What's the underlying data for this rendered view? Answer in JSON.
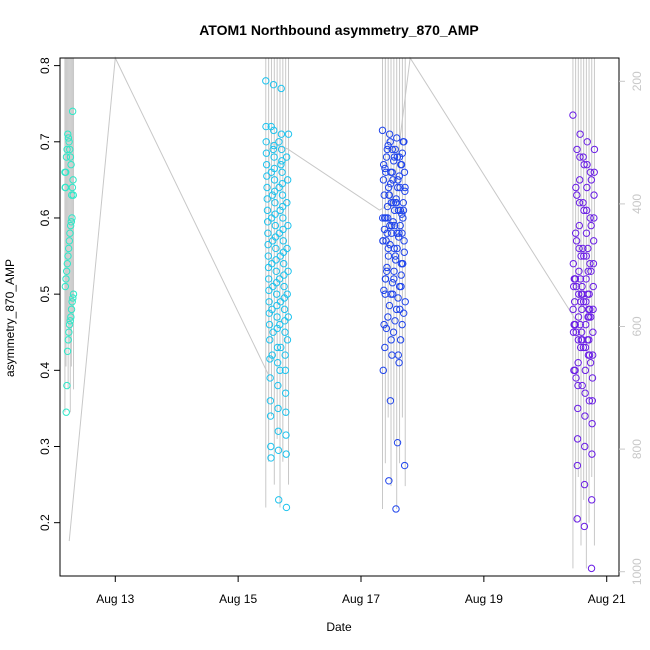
{
  "chart_data": {
    "type": "scatter",
    "title": "ATOM1 Northbound asymmetry_870_AMP",
    "xlabel": "Date",
    "ylabel": "asymmetry_870_AMP",
    "x_ticks": [
      "Aug 13",
      "Aug 15",
      "Aug 17",
      "Aug 19",
      "Aug 21"
    ],
    "x_tick_days": [
      13,
      15,
      17,
      19,
      21
    ],
    "xlim_days": [
      12.1,
      21.2
    ],
    "y_ticks": [
      0.2,
      0.3,
      0.4,
      0.5,
      0.6,
      0.7,
      0.8
    ],
    "ylim": [
      0.13,
      0.81
    ],
    "right_axis_ticks": [
      200,
      400,
      600,
      800,
      1000
    ],
    "right_axis_range": [
      162,
      1007
    ],
    "right_axis_color": "#c8c8c8",
    "grid": false,
    "legend": "none",
    "line_color": "#c8c8c8",
    "line_series": [
      {
        "x": [
          12.25,
          13.0,
          15.5,
          15.5,
          15.8,
          17.3,
          17.5,
          17.8,
          20.5
        ],
        "y": [
          950,
          162,
          680,
          300,
          310,
          410,
          400,
          162,
          590
        ]
      }
    ],
    "series": [
      {
        "color": "#2de8c8",
        "day_start": 12.18,
        "day_end": 12.32,
        "values": [
          0.66,
          0.65,
          0.64,
          0.63,
          0.67,
          0.68,
          0.69,
          0.7,
          0.705,
          0.71,
          0.69,
          0.68,
          0.66,
          0.64,
          0.63,
          0.74,
          0.6,
          0.595,
          0.59,
          0.58,
          0.57,
          0.56,
          0.55,
          0.54,
          0.53,
          0.52,
          0.51,
          0.5,
          0.495,
          0.49,
          0.48,
          0.47,
          0.465,
          0.46,
          0.45,
          0.44,
          0.425,
          0.38,
          0.345,
          0.64
        ]
      },
      {
        "color": "#1ec3ee",
        "day_start": 15.45,
        "day_end": 15.82,
        "values": [
          0.78,
          0.775,
          0.77,
          0.72,
          0.715,
          0.71,
          0.7,
          0.695,
          0.69,
          0.685,
          0.68,
          0.675,
          0.67,
          0.665,
          0.66,
          0.655,
          0.65,
          0.645,
          0.64,
          0.635,
          0.63,
          0.625,
          0.62,
          0.615,
          0.61,
          0.605,
          0.6,
          0.595,
          0.59,
          0.585,
          0.58,
          0.575,
          0.57,
          0.565,
          0.56,
          0.555,
          0.55,
          0.545,
          0.54,
          0.535,
          0.53,
          0.525,
          0.52,
          0.515,
          0.51,
          0.505,
          0.5,
          0.495,
          0.49,
          0.485,
          0.48,
          0.475,
          0.47,
          0.465,
          0.46,
          0.455,
          0.45,
          0.44,
          0.43,
          0.42,
          0.415,
          0.41,
          0.4,
          0.39,
          0.38,
          0.37,
          0.36,
          0.35,
          0.345,
          0.34,
          0.32,
          0.315,
          0.3,
          0.295,
          0.29,
          0.285,
          0.23,
          0.22,
          0.72,
          0.7,
          0.68,
          0.66,
          0.64,
          0.62,
          0.6,
          0.58,
          0.56,
          0.54,
          0.52,
          0.5,
          0.48,
          0.46,
          0.44,
          0.42,
          0.4,
          0.65,
          0.63,
          0.61,
          0.59,
          0.57,
          0.55,
          0.53,
          0.51,
          0.49,
          0.47,
          0.45,
          0.43,
          0.71,
          0.69,
          0.67
        ]
      },
      {
        "color": "#1f44ec",
        "day_start": 17.35,
        "day_end": 17.72,
        "values": [
          0.715,
          0.71,
          0.705,
          0.7,
          0.695,
          0.69,
          0.685,
          0.68,
          0.675,
          0.67,
          0.665,
          0.66,
          0.655,
          0.65,
          0.645,
          0.64,
          0.635,
          0.63,
          0.625,
          0.62,
          0.615,
          0.61,
          0.605,
          0.6,
          0.595,
          0.59,
          0.585,
          0.58,
          0.575,
          0.57,
          0.565,
          0.56,
          0.555,
          0.55,
          0.545,
          0.54,
          0.535,
          0.53,
          0.525,
          0.52,
          0.515,
          0.51,
          0.505,
          0.5,
          0.495,
          0.49,
          0.485,
          0.48,
          0.475,
          0.47,
          0.465,
          0.46,
          0.455,
          0.45,
          0.44,
          0.43,
          0.42,
          0.41,
          0.4,
          0.36,
          0.305,
          0.275,
          0.255,
          0.218,
          0.7,
          0.69,
          0.68,
          0.67,
          0.66,
          0.65,
          0.64,
          0.63,
          0.62,
          0.61,
          0.6,
          0.59,
          0.58,
          0.57,
          0.56,
          0.55,
          0.54,
          0.53,
          0.52,
          0.51,
          0.5,
          0.69,
          0.68,
          0.67,
          0.66,
          0.65,
          0.64,
          0.63,
          0.62,
          0.61,
          0.6,
          0.59,
          0.58,
          0.57,
          0.62,
          0.61,
          0.6,
          0.59,
          0.58,
          0.57,
          0.7,
          0.68,
          0.66,
          0.64,
          0.62,
          0.6,
          0.58,
          0.56,
          0.54,
          0.52,
          0.5,
          0.48,
          0.46,
          0.44,
          0.42
        ]
      },
      {
        "color": "#6a1ee6",
        "day_start": 20.45,
        "day_end": 20.8,
        "values": [
          0.735,
          0.71,
          0.7,
          0.69,
          0.68,
          0.67,
          0.66,
          0.65,
          0.64,
          0.63,
          0.62,
          0.61,
          0.6,
          0.59,
          0.58,
          0.57,
          0.56,
          0.55,
          0.54,
          0.53,
          0.52,
          0.51,
          0.5,
          0.49,
          0.48,
          0.47,
          0.46,
          0.45,
          0.44,
          0.43,
          0.42,
          0.41,
          0.4,
          0.39,
          0.38,
          0.37,
          0.36,
          0.35,
          0.34,
          0.33,
          0.31,
          0.3,
          0.29,
          0.275,
          0.25,
          0.23,
          0.205,
          0.195,
          0.14,
          0.69,
          0.67,
          0.65,
          0.63,
          0.61,
          0.59,
          0.57,
          0.55,
          0.53,
          0.51,
          0.49,
          0.47,
          0.45,
          0.43,
          0.41,
          0.39,
          0.68,
          0.66,
          0.64,
          0.62,
          0.6,
          0.58,
          0.56,
          0.54,
          0.52,
          0.5,
          0.48,
          0.46,
          0.44,
          0.42,
          0.4,
          0.38,
          0.36,
          0.52,
          0.51,
          0.5,
          0.49,
          0.48,
          0.47,
          0.46,
          0.45,
          0.44,
          0.52,
          0.5,
          0.48,
          0.46,
          0.44,
          0.42,
          0.4,
          0.55,
          0.53,
          0.51,
          0.49,
          0.47,
          0.45,
          0.43,
          0.56,
          0.54,
          0.52,
          0.5,
          0.48,
          0.46,
          0.44
        ]
      }
    ]
  }
}
